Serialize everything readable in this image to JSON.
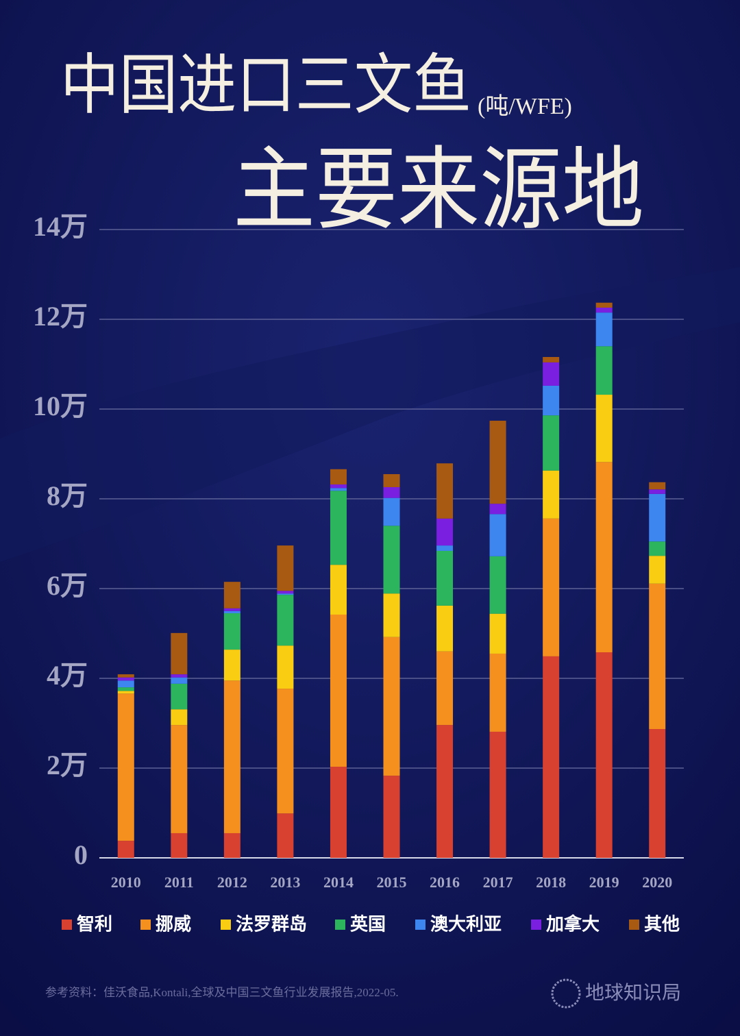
{
  "chart_data": {
    "type": "stacked_bar",
    "title": "中国进口三文鱼",
    "unit": "(吨/WFE)",
    "subtitle": "主要来源地",
    "categories": [
      "2010",
      "2011",
      "2012",
      "2013",
      "2014",
      "2015",
      "2016",
      "2017",
      "2018",
      "2019",
      "2020"
    ],
    "series": [
      {
        "name": "智利",
        "color": "#d8402f",
        "values": [
          3800,
          5500,
          5500,
          9900,
          20300,
          18300,
          29600,
          28100,
          44900,
          45800,
          28700
        ]
      },
      {
        "name": "挪威",
        "color": "#f5901e",
        "values": [
          32800,
          24100,
          34000,
          27800,
          33900,
          30900,
          16400,
          17400,
          30700,
          42400,
          32400
        ]
      },
      {
        "name": "法罗群岛",
        "color": "#f8cd12",
        "values": [
          600,
          3500,
          6900,
          9600,
          11100,
          9700,
          10200,
          8900,
          10700,
          15000,
          6200
        ]
      },
      {
        "name": "英国",
        "color": "#2db55d",
        "values": [
          800,
          5700,
          8100,
          11300,
          16500,
          15100,
          12200,
          12800,
          12300,
          10800,
          3200
        ]
      },
      {
        "name": "澳大利亚",
        "color": "#3d86f0",
        "values": [
          1500,
          1400,
          500,
          300,
          600,
          6200,
          1200,
          9400,
          6600,
          7500,
          10600
        ]
      },
      {
        "name": "加拿大",
        "color": "#7a1ee0",
        "values": [
          700,
          700,
          600,
          600,
          800,
          2400,
          6000,
          2300,
          5200,
          1100,
          1000
        ]
      },
      {
        "name": "其他",
        "color": "#a85a12",
        "values": [
          700,
          9200,
          5900,
          10100,
          3400,
          2900,
          12300,
          18500,
          1200,
          1100,
          1600
        ]
      }
    ],
    "ylim": [
      0,
      140000
    ],
    "yticks": [
      0,
      {
        "value": 20000,
        "label": "2万"
      },
      {
        "value": 40000,
        "label": "4万"
      },
      {
        "value": 60000,
        "label": "6万"
      },
      {
        "value": 80000,
        "label": "8万"
      },
      {
        "value": 100000,
        "label": "10万"
      },
      {
        "value": 120000,
        "label": "12万"
      },
      {
        "value": 140000,
        "label": "14万"
      }
    ],
    "grid": true,
    "source": "参考资料：佳沃食品,Kontali,全球及中国三文鱼行业发展报告,2022-05.",
    "brand": "地球知识局"
  }
}
